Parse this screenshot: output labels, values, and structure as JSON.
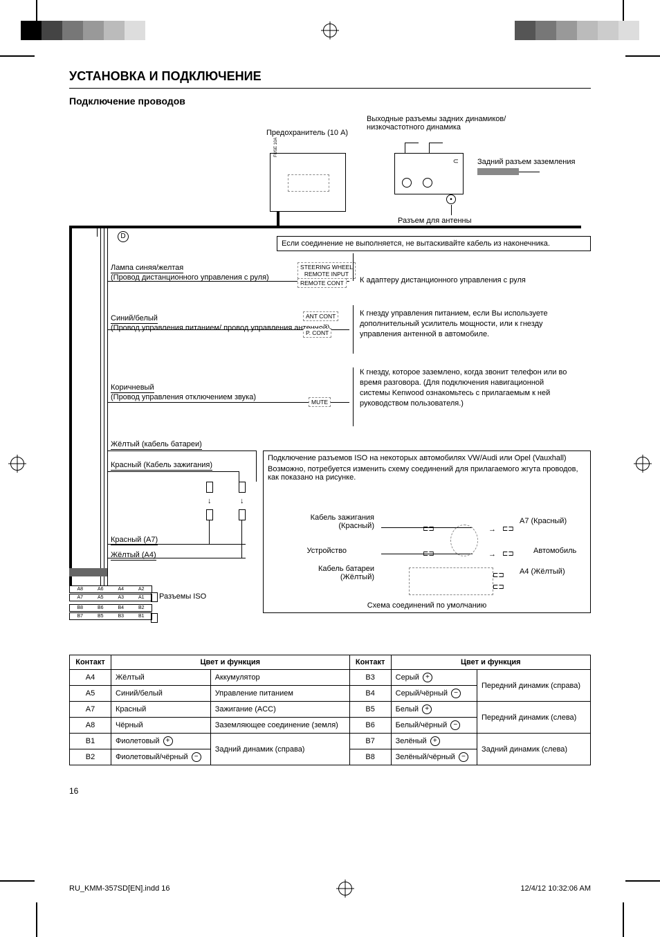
{
  "header": {
    "title": "УСТАНОВКА И ПОДКЛЮЧЕНИЕ",
    "subtitle": "Подключение проводов"
  },
  "diagram": {
    "fuse": "Предохранитель (10 A)",
    "rear_out": "Выходные разъемы задних динамиков/\nнизкочастотного динамика",
    "rear_gnd": "Задний разъем заземления",
    "ant_jack": "Разъем для антенны",
    "no_connect_note": "Если соединение не выполняется, не вытаскивайте кабель из наконечника.",
    "tags": {
      "steering": "STEERING WHEEL\nREMOTE INPUT",
      "remote": "REMOTE CONT",
      "ant": "ANT CONT",
      "pcont": "P. CONT",
      "mute": "MUTE"
    },
    "wires": {
      "remote_color": "Лампа синяя/желтая",
      "remote_desc": "(Провод дистанционного управления с руля)",
      "remote_right": "К адаптеру дистанционного управления с руля",
      "pcont_color": "Синий/белый",
      "pcont_desc": "(Провод управления питанием/ провод управления антенной)",
      "pcont_right": "К гнезду управления питанием, если Вы используете дополнительный усилитель мощности, или к гнезду управления антенной в автомобиле.",
      "mute_color": "Коричневый",
      "mute_desc": "(Провод управления отключением звука)",
      "mute_right": "К гнезду, которое заземлено, когда звонит телефон или во время разговора. (Для подключения навигационной системы Kenwood ознакомьтесь с прилагаемым к ней руководством пользователя.)",
      "yellow_batt": "Жёлтый (кабель батареи)",
      "red_ign": "Красный (Кабель зажигания)",
      "red_a7": "Красный (A7)",
      "yellow_a4": "Жёлтый (A4)",
      "iso_label": "Разъемы ISO",
      "marker_d": "D"
    },
    "iso_box": {
      "title": "Подключение разъемов ISO на некоторых автомобилях VW/Audi или Opel (Vauxhall)",
      "body": "Возможно, потребуется изменить схему соединений для прилагаемого жгута проводов, как показано на рисунке.",
      "ign": "Кабель зажигания (Красный)",
      "batt": "Кабель батареи (Жёлтый)",
      "unit": "Устройство",
      "car": "Автомобиль",
      "a7": "A7 (Красный)",
      "a4": "A4 (Жёлтый)",
      "default": "Схема соединений по умолчанию"
    },
    "iso_ports": {
      "r1": [
        "A8",
        "A6",
        "A4",
        "A2"
      ],
      "r2": [
        "A7",
        "A5",
        "A3",
        "A1"
      ],
      "r3": [
        "B8",
        "B6",
        "B4",
        "B2"
      ],
      "r4": [
        "B7",
        "B5",
        "B3",
        "B1"
      ]
    }
  },
  "pin_table": {
    "headers": {
      "pin": "Контакт",
      "color_func": "Цвет и функция"
    },
    "left": [
      {
        "pin": "A4",
        "color": "Жёлтый",
        "func": "Аккумулятор"
      },
      {
        "pin": "A5",
        "color": "Синий/белый",
        "func": "Управление питанием"
      },
      {
        "pin": "A7",
        "color": "Красный",
        "func": "Зажигание (ACC)"
      },
      {
        "pin": "A8",
        "color": "Чёрный",
        "func": "Заземляющее соединение (земля)"
      },
      {
        "pin": "B1",
        "color": "Фиолетовый",
        "pol": "+",
        "func_group": "Задний динамик (справа)"
      },
      {
        "pin": "B2",
        "color": "Фиолетовый/чёрный",
        "pol": "-"
      }
    ],
    "right": [
      {
        "pin": "B3",
        "color": "Серый",
        "pol": "+",
        "func_group": "Передний динамик (справа)"
      },
      {
        "pin": "B4",
        "color": "Серый/чёрный",
        "pol": "-"
      },
      {
        "pin": "B5",
        "color": "Белый",
        "pol": "+",
        "func_group": "Передний динамик (слева)"
      },
      {
        "pin": "B6",
        "color": "Белый/чёрный",
        "pol": "-"
      },
      {
        "pin": "B7",
        "color": "Зелёный",
        "pol": "+",
        "func_group": "Задний динамик (слева)"
      },
      {
        "pin": "B8",
        "color": "Зелёный/чёрный",
        "pol": "-"
      }
    ]
  },
  "footer": {
    "page": "16",
    "file": "RU_KMM-357SD[EN].indd   16",
    "timestamp": "12/4/12   10:32:06 AM"
  },
  "colors": {
    "bar": [
      "#000000",
      "#444444",
      "#777777",
      "#999999",
      "#bbbbbb",
      "#dddddd"
    ],
    "bar2": [
      "#555555",
      "#777777",
      "#999999",
      "#bbbbbb",
      "#cccccc",
      "#dddddd"
    ]
  }
}
